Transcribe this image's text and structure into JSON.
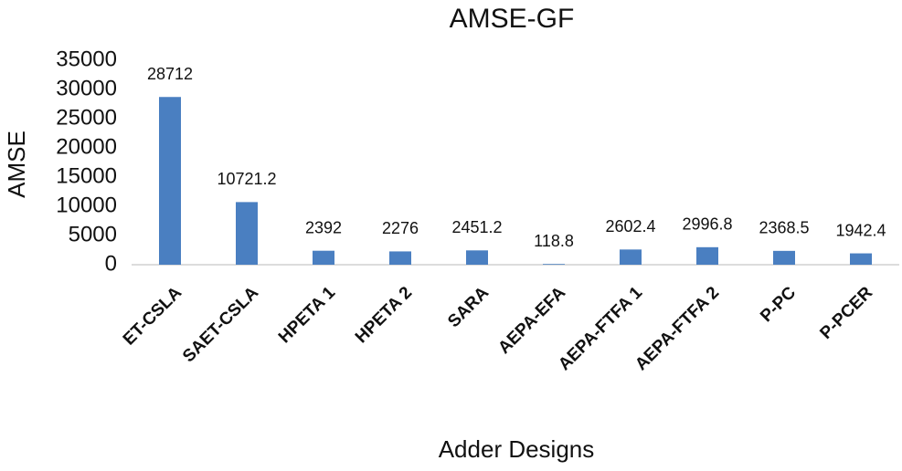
{
  "chart_data": {
    "type": "bar",
    "title": "AMSE-GF",
    "x_label": "Adder Designs",
    "y_label": "AMSE",
    "categories": [
      "ET-CSLA",
      "SAET-CSLA",
      "HPETA 1",
      "HPETA 2",
      "SARA",
      "AEPA-EFA",
      "AEPA-FTFA 1",
      "AEPA-FTFA 2",
      "P-PC",
      "P-PCER"
    ],
    "values": [
      28712,
      10721.2,
      2392,
      2276,
      2451.2,
      118.8,
      2602.4,
      2996.8,
      2368.5,
      1942.4
    ],
    "color": "#4a7fc1",
    "ylim": [
      0,
      35000
    ],
    "yticks": [
      0,
      5000,
      10000,
      15000,
      20000,
      25000,
      30000,
      35000
    ],
    "grid": false
  }
}
